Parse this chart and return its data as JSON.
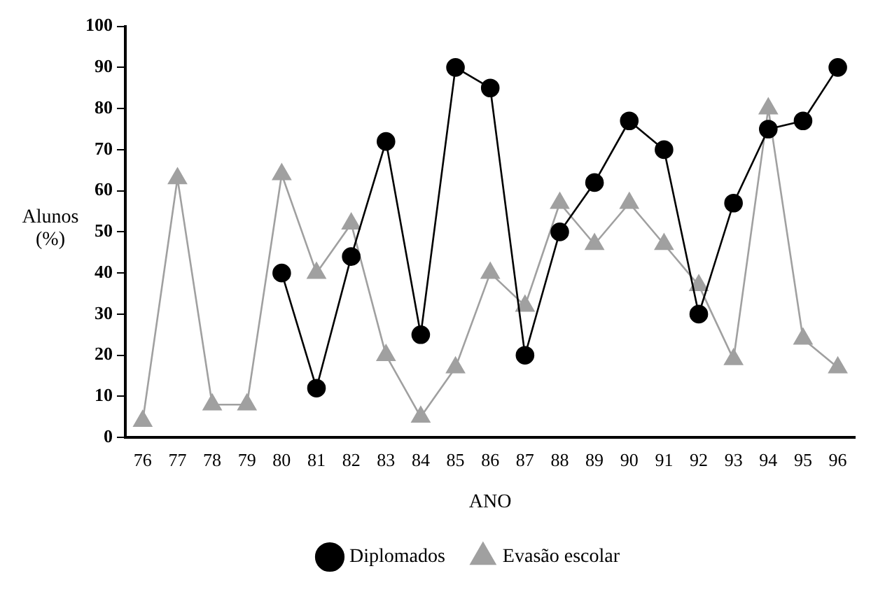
{
  "chart_data": {
    "type": "line",
    "xlabel": "ANO",
    "ylabel": "Alunos (%)",
    "categories": [
      "76",
      "77",
      "78",
      "79",
      "80",
      "81",
      "82",
      "83",
      "84",
      "85",
      "86",
      "87",
      "88",
      "89",
      "90",
      "91",
      "92",
      "93",
      "94",
      "95",
      "96"
    ],
    "series": [
      {
        "name": "Diplomados",
        "color": "#000000",
        "marker": "circle",
        "values": [
          null,
          null,
          null,
          null,
          40,
          12,
          44,
          72,
          25,
          90,
          85,
          20,
          50,
          62,
          77,
          70,
          30,
          57,
          75,
          77,
          90
        ]
      },
      {
        "name": "Evasão escolar",
        "color": "#a0a0a0",
        "marker": "triangle",
        "values": [
          4,
          63,
          8,
          8,
          64,
          40,
          52,
          20,
          5,
          17,
          40,
          32,
          57,
          47,
          57,
          47,
          37,
          19,
          80,
          24,
          17
        ]
      }
    ],
    "ylim": [
      0,
      100
    ],
    "yticks": [
      0,
      10,
      20,
      30,
      40,
      50,
      60,
      70,
      80,
      90,
      100
    ],
    "grid": false,
    "legend": "bottom"
  }
}
